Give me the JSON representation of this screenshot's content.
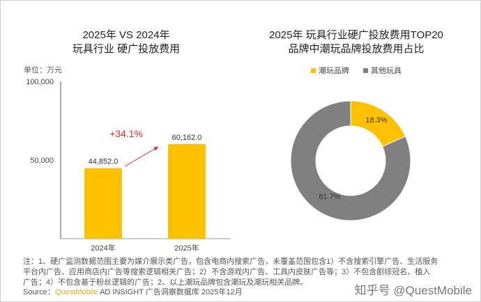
{
  "chart_data": [
    {
      "type": "bar",
      "title": "2025年 VS 2024年\n玩具行业 硬广投放费用",
      "title_lines": [
        "2025年 VS 2024年",
        "玩具行业 硬广投放费用"
      ],
      "unit": "单位：万元",
      "categories": [
        "2024年",
        "2025年"
      ],
      "values": [
        44852.0,
        60162.0
      ],
      "value_labels": [
        "44,852.0",
        "60,162.0"
      ],
      "ylim": [
        0,
        100000
      ],
      "yticks": [
        50000,
        100000
      ],
      "ytick_labels": [
        "50,000",
        "100,000"
      ],
      "annotation": "+34.1%",
      "bar_color": "#FFC000",
      "annotation_color": "#E8262B"
    },
    {
      "type": "pie",
      "donut": true,
      "title_lines": [
        "2025年 玩具行业硬广投放费用TOP20",
        "品牌中潮玩品牌投放费用占比"
      ],
      "labels": [
        "潮玩品牌",
        "其他玩具"
      ],
      "values": [
        18.3,
        81.7
      ],
      "value_labels": [
        "18.3%",
        "81.7%"
      ],
      "colors": [
        "#FFC000",
        "#808080"
      ],
      "legend": "top"
    }
  ],
  "footer": {
    "note_lines": [
      "注：1、硬广监测数据范围主要为媒介展示类广告，包含电商内搜索广告，未覆盖范围包含1）不含搜索引擎广告、生活服务",
      "平台内广告、应用商店内广告等搜索逻辑相关广告；2）不含游戏内广告、工具内皮肤广告等；3）不包含剧综冠名、植入",
      "广告；4）不包含基于粉丝逻辑的广告；2、以上潮玩品牌包含潮玩及潮玩相关品牌。"
    ],
    "source_label": "Source：",
    "source_brand": "QuestMobile",
    "source_rest": " AD INSIGHT 广告洞察数据库 2025年12月",
    "watermark": "知乎号 @QuestMobile"
  }
}
